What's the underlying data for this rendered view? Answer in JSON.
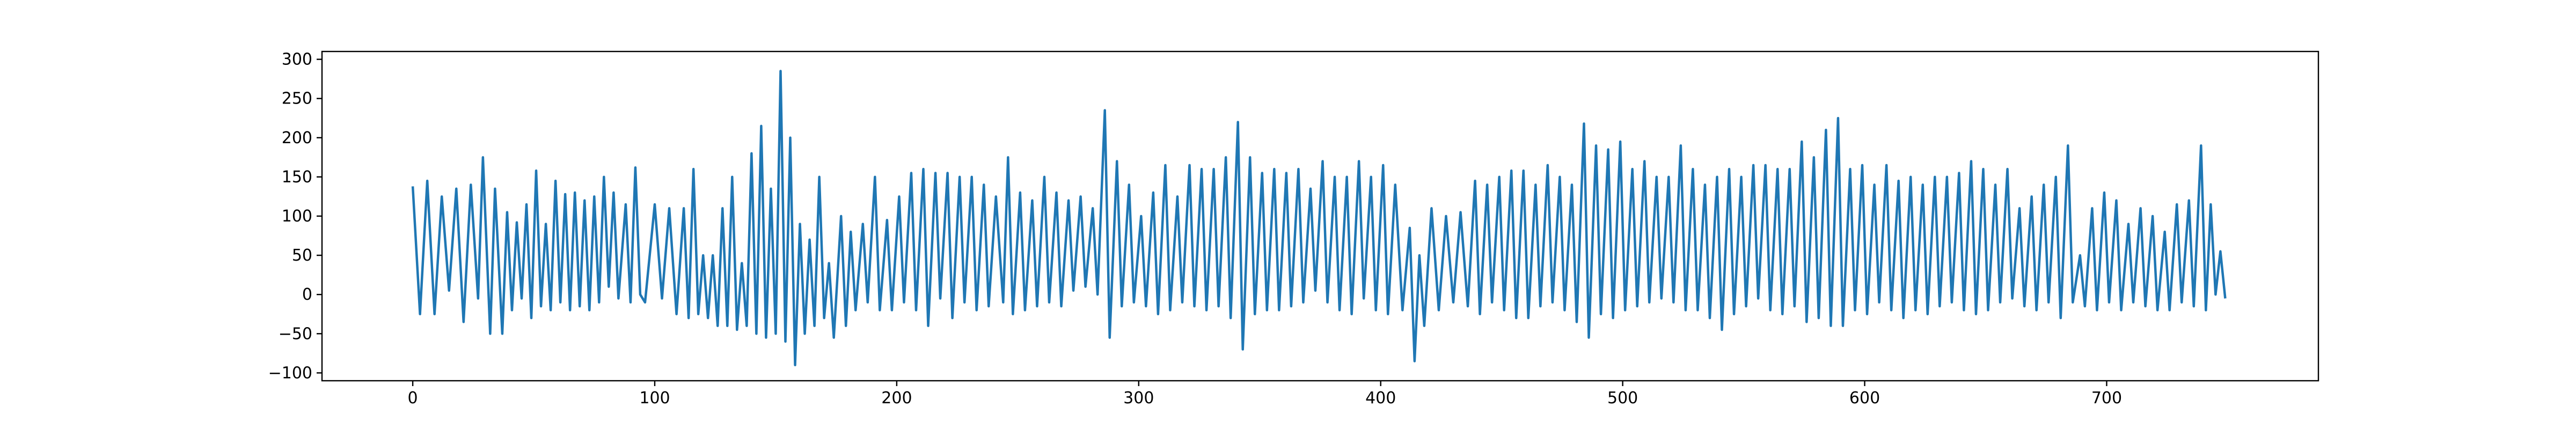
{
  "chart_data": {
    "type": "line",
    "title": "",
    "xlabel": "",
    "ylabel": "",
    "xlim": [
      -37.5,
      787.5
    ],
    "ylim": [
      -110,
      310
    ],
    "xticks": [
      0,
      100,
      200,
      300,
      400,
      500,
      600,
      700
    ],
    "yticks": [
      -100,
      -50,
      0,
      50,
      100,
      150,
      200,
      250,
      300
    ],
    "xtick_labels": [
      "0",
      "100",
      "200",
      "300",
      "400",
      "500",
      "600",
      "700"
    ],
    "ytick_labels": [
      "−100",
      "−50",
      "0",
      "50",
      "100",
      "150",
      "200",
      "250",
      "300"
    ],
    "grid": false,
    "legend": "none",
    "line_color": "#1f77b4",
    "series": [
      {
        "points": [
          [
            0,
            138
          ],
          [
            3,
            -25
          ],
          [
            6,
            145
          ],
          [
            9,
            -25
          ],
          [
            12,
            125
          ],
          [
            15,
            5
          ],
          [
            18,
            135
          ],
          [
            21,
            -35
          ],
          [
            24,
            140
          ],
          [
            27,
            -5
          ],
          [
            29,
            175
          ],
          [
            32,
            -50
          ],
          [
            34,
            135
          ],
          [
            37,
            -50
          ],
          [
            39,
            105
          ],
          [
            41,
            -20
          ],
          [
            43,
            92
          ],
          [
            45,
            -5
          ],
          [
            47,
            115
          ],
          [
            49,
            -30
          ],
          [
            51,
            158
          ],
          [
            53,
            -15
          ],
          [
            55,
            90
          ],
          [
            57,
            -20
          ],
          [
            59,
            145
          ],
          [
            61,
            -10
          ],
          [
            63,
            128
          ],
          [
            65,
            -20
          ],
          [
            67,
            130
          ],
          [
            69,
            -15
          ],
          [
            71,
            120
          ],
          [
            73,
            -20
          ],
          [
            75,
            125
          ],
          [
            77,
            -10
          ],
          [
            79,
            150
          ],
          [
            81,
            10
          ],
          [
            83,
            130
          ],
          [
            85,
            -5
          ],
          [
            88,
            115
          ],
          [
            90,
            -10
          ],
          [
            92,
            162
          ],
          [
            94,
            0
          ],
          [
            96,
            -10
          ],
          [
            100,
            115
          ],
          [
            103,
            -5
          ],
          [
            106,
            110
          ],
          [
            109,
            -25
          ],
          [
            112,
            110
          ],
          [
            114,
            -30
          ],
          [
            116,
            160
          ],
          [
            118,
            -25
          ],
          [
            120,
            50
          ],
          [
            122,
            -30
          ],
          [
            124,
            50
          ],
          [
            126,
            -40
          ],
          [
            128,
            110
          ],
          [
            130,
            -40
          ],
          [
            132,
            150
          ],
          [
            134,
            -45
          ],
          [
            136,
            40
          ],
          [
            138,
            -40
          ],
          [
            140,
            180
          ],
          [
            142,
            -50
          ],
          [
            144,
            215
          ],
          [
            146,
            -55
          ],
          [
            148,
            135
          ],
          [
            150,
            -50
          ],
          [
            152,
            285
          ],
          [
            154,
            -60
          ],
          [
            156,
            200
          ],
          [
            158,
            -90
          ],
          [
            160,
            90
          ],
          [
            162,
            -50
          ],
          [
            164,
            70
          ],
          [
            166,
            -40
          ],
          [
            168,
            150
          ],
          [
            170,
            -30
          ],
          [
            172,
            40
          ],
          [
            174,
            -55
          ],
          [
            177,
            100
          ],
          [
            179,
            -40
          ],
          [
            181,
            80
          ],
          [
            183,
            -20
          ],
          [
            186,
            90
          ],
          [
            188,
            -10
          ],
          [
            191,
            150
          ],
          [
            193,
            -20
          ],
          [
            196,
            95
          ],
          [
            198,
            -20
          ],
          [
            201,
            125
          ],
          [
            203,
            -10
          ],
          [
            206,
            155
          ],
          [
            208,
            -20
          ],
          [
            211,
            160
          ],
          [
            213,
            -40
          ],
          [
            216,
            155
          ],
          [
            218,
            -5
          ],
          [
            221,
            155
          ],
          [
            223,
            -30
          ],
          [
            226,
            150
          ],
          [
            228,
            -10
          ],
          [
            231,
            150
          ],
          [
            233,
            -20
          ],
          [
            236,
            140
          ],
          [
            238,
            -15
          ],
          [
            241,
            125
          ],
          [
            244,
            -10
          ],
          [
            246,
            175
          ],
          [
            248,
            -25
          ],
          [
            251,
            130
          ],
          [
            253,
            -20
          ],
          [
            256,
            120
          ],
          [
            258,
            -15
          ],
          [
            261,
            150
          ],
          [
            263,
            -10
          ],
          [
            266,
            130
          ],
          [
            268,
            -15
          ],
          [
            271,
            120
          ],
          [
            273,
            5
          ],
          [
            276,
            125
          ],
          [
            278,
            10
          ],
          [
            281,
            110
          ],
          [
            283,
            0
          ],
          [
            286,
            235
          ],
          [
            288,
            -55
          ],
          [
            291,
            170
          ],
          [
            293,
            -15
          ],
          [
            296,
            140
          ],
          [
            298,
            -10
          ],
          [
            301,
            100
          ],
          [
            303,
            -15
          ],
          [
            306,
            130
          ],
          [
            308,
            -25
          ],
          [
            311,
            165
          ],
          [
            313,
            -20
          ],
          [
            316,
            125
          ],
          [
            318,
            -10
          ],
          [
            321,
            165
          ],
          [
            323,
            -15
          ],
          [
            326,
            160
          ],
          [
            328,
            -20
          ],
          [
            331,
            160
          ],
          [
            333,
            -15
          ],
          [
            336,
            175
          ],
          [
            338,
            -30
          ],
          [
            341,
            220
          ],
          [
            343,
            -70
          ],
          [
            346,
            175
          ],
          [
            348,
            -25
          ],
          [
            351,
            155
          ],
          [
            353,
            -20
          ],
          [
            356,
            160
          ],
          [
            358,
            -20
          ],
          [
            361,
            155
          ],
          [
            363,
            -15
          ],
          [
            366,
            160
          ],
          [
            368,
            -10
          ],
          [
            371,
            135
          ],
          [
            373,
            5
          ],
          [
            376,
            170
          ],
          [
            378,
            -10
          ],
          [
            381,
            150
          ],
          [
            383,
            -20
          ],
          [
            386,
            150
          ],
          [
            388,
            -25
          ],
          [
            391,
            170
          ],
          [
            393,
            -5
          ],
          [
            396,
            150
          ],
          [
            398,
            -20
          ],
          [
            401,
            165
          ],
          [
            403,
            -25
          ],
          [
            406,
            140
          ],
          [
            409,
            -20
          ],
          [
            412,
            85
          ],
          [
            414,
            -85
          ],
          [
            416,
            50
          ],
          [
            418,
            -40
          ],
          [
            421,
            110
          ],
          [
            424,
            -20
          ],
          [
            427,
            100
          ],
          [
            430,
            -10
          ],
          [
            433,
            105
          ],
          [
            436,
            -15
          ],
          [
            439,
            145
          ],
          [
            441,
            -25
          ],
          [
            444,
            140
          ],
          [
            446,
            -10
          ],
          [
            449,
            150
          ],
          [
            451,
            -20
          ],
          [
            454,
            158
          ],
          [
            456,
            -30
          ],
          [
            459,
            158
          ],
          [
            461,
            -30
          ],
          [
            464,
            140
          ],
          [
            466,
            -15
          ],
          [
            469,
            165
          ],
          [
            471,
            -10
          ],
          [
            474,
            150
          ],
          [
            476,
            -20
          ],
          [
            479,
            140
          ],
          [
            481,
            -35
          ],
          [
            484,
            218
          ],
          [
            486,
            -55
          ],
          [
            489,
            190
          ],
          [
            491,
            -25
          ],
          [
            494,
            185
          ],
          [
            496,
            -30
          ],
          [
            499,
            195
          ],
          [
            501,
            -20
          ],
          [
            504,
            160
          ],
          [
            506,
            -15
          ],
          [
            509,
            170
          ],
          [
            511,
            -10
          ],
          [
            514,
            150
          ],
          [
            516,
            -5
          ],
          [
            519,
            150
          ],
          [
            521,
            -10
          ],
          [
            524,
            190
          ],
          [
            526,
            -20
          ],
          [
            529,
            160
          ],
          [
            531,
            -20
          ],
          [
            534,
            140
          ],
          [
            536,
            -30
          ],
          [
            539,
            150
          ],
          [
            541,
            -45
          ],
          [
            544,
            160
          ],
          [
            546,
            -25
          ],
          [
            549,
            150
          ],
          [
            551,
            -15
          ],
          [
            554,
            165
          ],
          [
            556,
            -5
          ],
          [
            559,
            165
          ],
          [
            561,
            -20
          ],
          [
            564,
            160
          ],
          [
            566,
            -25
          ],
          [
            569,
            160
          ],
          [
            571,
            -15
          ],
          [
            574,
            195
          ],
          [
            576,
            -35
          ],
          [
            579,
            175
          ],
          [
            581,
            -30
          ],
          [
            584,
            210
          ],
          [
            586,
            -40
          ],
          [
            589,
            225
          ],
          [
            591,
            -40
          ],
          [
            594,
            160
          ],
          [
            596,
            -20
          ],
          [
            599,
            165
          ],
          [
            601,
            -25
          ],
          [
            604,
            140
          ],
          [
            606,
            -10
          ],
          [
            609,
            165
          ],
          [
            611,
            -20
          ],
          [
            614,
            145
          ],
          [
            616,
            -30
          ],
          [
            619,
            150
          ],
          [
            621,
            -20
          ],
          [
            624,
            140
          ],
          [
            626,
            -25
          ],
          [
            629,
            150
          ],
          [
            631,
            -15
          ],
          [
            634,
            150
          ],
          [
            636,
            -10
          ],
          [
            639,
            155
          ],
          [
            641,
            -20
          ],
          [
            644,
            170
          ],
          [
            646,
            -25
          ],
          [
            649,
            160
          ],
          [
            651,
            -20
          ],
          [
            654,
            140
          ],
          [
            656,
            -10
          ],
          [
            659,
            160
          ],
          [
            661,
            -5
          ],
          [
            664,
            110
          ],
          [
            666,
            -15
          ],
          [
            669,
            125
          ],
          [
            671,
            -20
          ],
          [
            674,
            140
          ],
          [
            676,
            -10
          ],
          [
            679,
            150
          ],
          [
            681,
            -30
          ],
          [
            684,
            190
          ],
          [
            686,
            -10
          ],
          [
            689,
            50
          ],
          [
            691,
            -15
          ],
          [
            694,
            110
          ],
          [
            696,
            -20
          ],
          [
            699,
            130
          ],
          [
            701,
            -10
          ],
          [
            704,
            120
          ],
          [
            706,
            -20
          ],
          [
            709,
            90
          ],
          [
            711,
            -10
          ],
          [
            714,
            110
          ],
          [
            716,
            -15
          ],
          [
            719,
            100
          ],
          [
            721,
            -20
          ],
          [
            724,
            80
          ],
          [
            726,
            -20
          ],
          [
            729,
            115
          ],
          [
            731,
            -10
          ],
          [
            734,
            120
          ],
          [
            736,
            -15
          ],
          [
            739,
            190
          ],
          [
            741,
            -20
          ],
          [
            743,
            115
          ],
          [
            745,
            0
          ],
          [
            747,
            55
          ],
          [
            749,
            -5
          ]
        ]
      }
    ]
  }
}
